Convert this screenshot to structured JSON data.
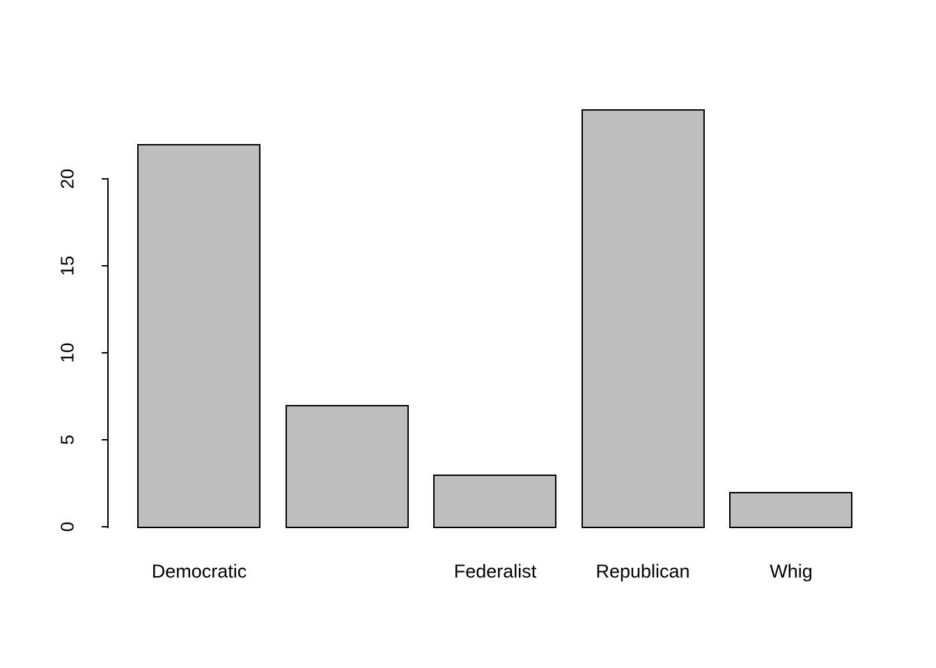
{
  "chart_data": {
    "type": "bar",
    "title": "",
    "xlabel": "",
    "ylabel": "",
    "categories": [
      "Democratic",
      "",
      "Federalist",
      "Republican",
      "Whig"
    ],
    "values": [
      22,
      7,
      3,
      24,
      2
    ],
    "ylim": [
      0,
      20
    ],
    "yticks": [
      0,
      5,
      10,
      15,
      20
    ],
    "bar_fill_color": "#bebebe",
    "bar_border_color": "#000000",
    "background_color": "#ffffff",
    "grid": false,
    "legend_position": "none",
    "y_tick_label_rotation": "vertical"
  }
}
